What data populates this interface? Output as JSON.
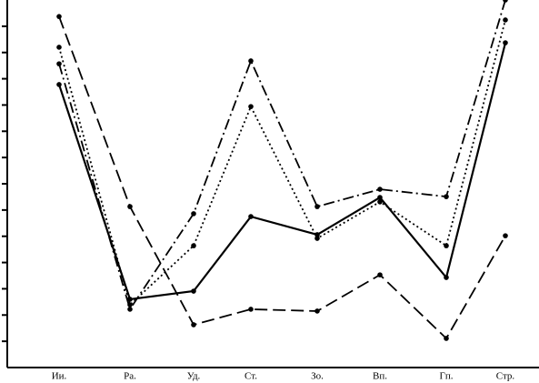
{
  "chart_data": {
    "type": "line",
    "categories": [
      "Ии.",
      "Ра.",
      "Уд.",
      "Ст.",
      "Зо.",
      "Вп.",
      "Гп.",
      "Стр."
    ],
    "ylim": [
      0,
      14
    ],
    "yticks": [
      1,
      2,
      3,
      4,
      5,
      6,
      7,
      8,
      9,
      10,
      11,
      12,
      13
    ],
    "series": [
      {
        "color": "#000000",
        "dash": "solid",
        "values": [
          10.78,
          2.6,
          2.91,
          5.75,
          5.06,
          6.48,
          3.43,
          12.37
        ]
      },
      {
        "color": "#000000",
        "dash": "dashed",
        "values": [
          13.37,
          6.13,
          1.63,
          2.22,
          2.15,
          3.53,
          1.11,
          5.02
        ]
      },
      {
        "color": "#000000",
        "dash": "dashdot",
        "values": [
          11.57,
          2.22,
          5.86,
          11.68,
          6.13,
          6.79,
          6.51,
          14
        ]
      },
      {
        "color": "#000000",
        "dash": "dotted",
        "values": [
          12.2,
          2.39,
          4.64,
          9.94,
          4.92,
          6.31,
          4.64,
          13.24
        ]
      }
    ]
  }
}
